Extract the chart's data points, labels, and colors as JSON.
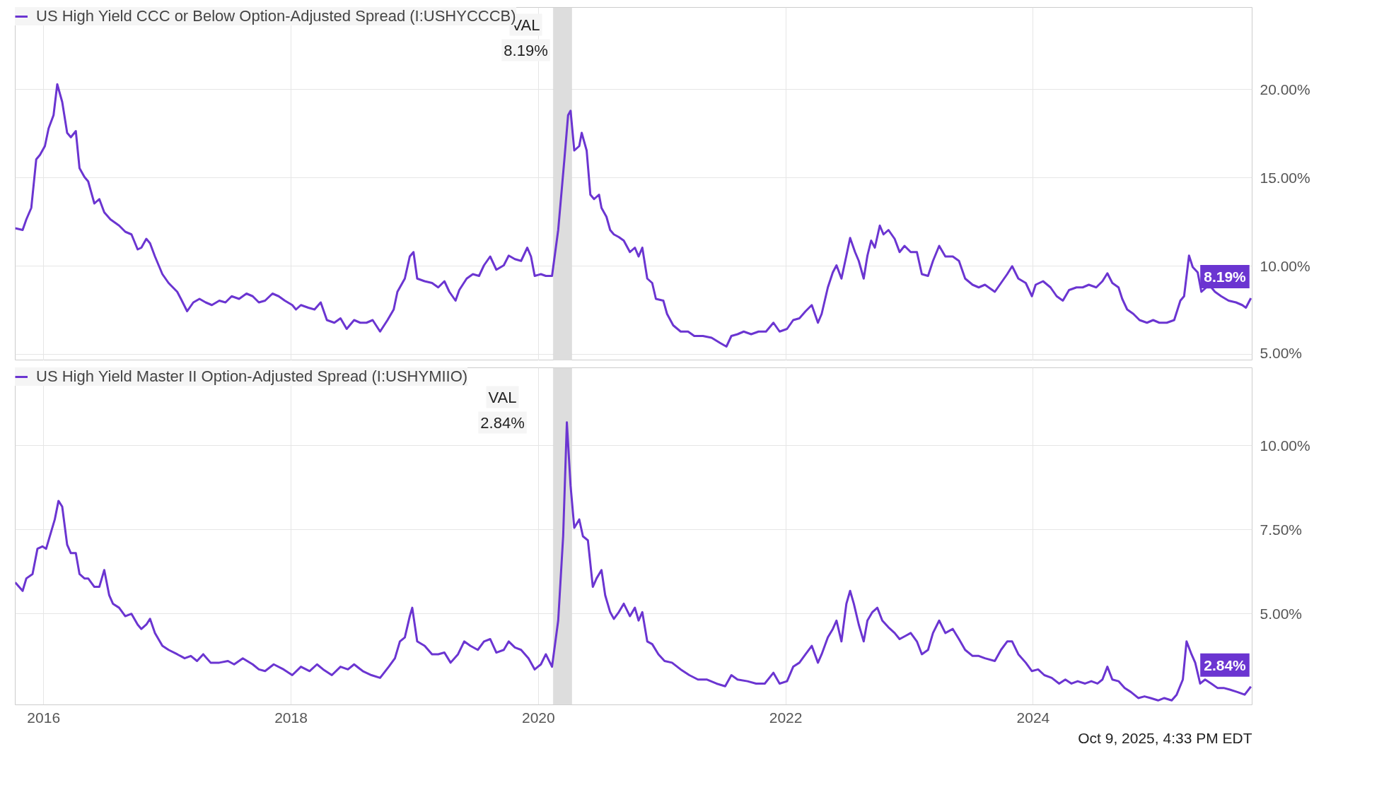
{
  "chart_data": [
    {
      "type": "line",
      "tick_labels": "y",
      "grid": true,
      "legend": "top left",
      "xlim": [
        2015.77,
        2025.77
      ],
      "xticks": [
        2016,
        2018,
        2020,
        2022,
        2024
      ],
      "ylim": [
        4.65,
        24.65
      ],
      "yticks": [
        {
          "value": 5,
          "label": "5.00%"
        },
        {
          "value": 10,
          "label": "10.00%"
        },
        {
          "value": 15,
          "label": "15.00%"
        },
        {
          "value": 20,
          "label": "20.00%"
        }
      ],
      "bands": [
        {
          "axis": "x",
          "from": 2020.12,
          "to": 2020.27,
          "color": "#dddddd"
        }
      ],
      "annotations": [
        "VAL",
        "8.19%",
        {
          "text": "8.19%",
          "x": 2025.76,
          "y": 8.19
        }
      ],
      "series": [
        {
          "name": "US High Yield CCC or Below Option-Adjusted Spread (I:USHYCCCB)",
          "color": "#6b35d1",
          "x": [
            2015.77,
            2015.83,
            2015.86,
            2015.9,
            2015.94,
            2015.97,
            2016.01,
            2016.04,
            2016.08,
            2016.11,
            2016.15,
            2016.19,
            2016.22,
            2016.26,
            2016.29,
            2016.33,
            2016.36,
            2016.41,
            2016.45,
            2016.49,
            2016.54,
            2016.58,
            2016.61,
            2016.66,
            2016.71,
            2016.76,
            2016.79,
            2016.83,
            2016.86,
            2016.9,
            2016.96,
            2017.01,
            2017.08,
            2017.11,
            2017.16,
            2017.21,
            2017.26,
            2017.31,
            2017.36,
            2017.42,
            2017.47,
            2017.52,
            2017.58,
            2017.64,
            2017.69,
            2017.74,
            2017.79,
            2017.85,
            2017.9,
            2017.95,
            2018.01,
            2018.04,
            2018.08,
            2018.14,
            2018.19,
            2018.24,
            2018.29,
            2018.35,
            2018.4,
            2018.45,
            2018.51,
            2018.56,
            2018.61,
            2018.66,
            2018.72,
            2018.78,
            2018.83,
            2018.86,
            2018.92,
            2018.96,
            2018.99,
            2019.02,
            2019.08,
            2019.14,
            2019.19,
            2019.24,
            2019.28,
            2019.33,
            2019.36,
            2019.42,
            2019.47,
            2019.52,
            2019.56,
            2019.61,
            2019.66,
            2019.72,
            2019.76,
            2019.81,
            2019.86,
            2019.91,
            2019.94,
            2019.97,
            2020.02,
            2020.06,
            2020.11,
            2020.16,
            2020.21,
            2020.24,
            2020.26,
            2020.29,
            2020.33,
            2020.35,
            2020.39,
            2020.42,
            2020.45,
            2020.49,
            2020.51,
            2020.55,
            2020.58,
            2020.61,
            2020.65,
            2020.69,
            2020.74,
            2020.78,
            2020.81,
            2020.84,
            2020.88,
            2020.92,
            2020.95,
            2021.01,
            2021.04,
            2021.09,
            2021.15,
            2021.21,
            2021.26,
            2021.33,
            2021.4,
            2021.47,
            2021.52,
            2021.56,
            2021.61,
            2021.66,
            2021.72,
            2021.78,
            2021.84,
            2021.9,
            2021.95,
            2022.01,
            2022.06,
            2022.11,
            2022.16,
            2022.21,
            2022.26,
            2022.29,
            2022.34,
            2022.38,
            2022.41,
            2022.45,
            2022.49,
            2022.52,
            2022.56,
            2022.59,
            2022.63,
            2022.66,
            2022.69,
            2022.72,
            2022.76,
            2022.79,
            2022.83,
            2022.88,
            2022.92,
            2022.96,
            2023.01,
            2023.06,
            2023.1,
            2023.15,
            2023.19,
            2023.24,
            2023.29,
            2023.35,
            2023.4,
            2023.45,
            2023.51,
            2023.56,
            2023.61,
            2023.69,
            2023.74,
            2023.79,
            2023.83,
            2023.88,
            2023.94,
            2023.99,
            2024.02,
            2024.08,
            2024.14,
            2024.19,
            2024.24,
            2024.29,
            2024.35,
            2024.4,
            2024.45,
            2024.51,
            2024.56,
            2024.6,
            2024.64,
            2024.69,
            2024.72,
            2024.76,
            2024.81,
            2024.86,
            2024.92,
            2024.97,
            2025.02,
            2025.08,
            2025.14,
            2025.19,
            2025.22,
            2025.26,
            2025.29,
            2025.33,
            2025.36,
            2025.4,
            2025.44,
            2025.47,
            2025.52,
            2025.58,
            2025.64,
            2025.69,
            2025.72,
            2025.76
          ],
          "values": [
            12.15,
            12.05,
            12.65,
            13.3,
            16.05,
            16.3,
            16.8,
            17.8,
            18.55,
            20.3,
            19.3,
            17.55,
            17.3,
            17.65,
            15.55,
            15.05,
            14.8,
            13.55,
            13.8,
            13.05,
            12.65,
            12.45,
            12.3,
            11.95,
            11.8,
            10.95,
            11.05,
            11.55,
            11.3,
            10.55,
            9.55,
            9.05,
            8.55,
            8.15,
            7.45,
            7.95,
            8.15,
            7.95,
            7.8,
            8.05,
            7.95,
            8.3,
            8.15,
            8.45,
            8.3,
            7.95,
            8.05,
            8.45,
            8.3,
            8.05,
            7.8,
            7.55,
            7.8,
            7.65,
            7.55,
            7.95,
            6.95,
            6.8,
            7.05,
            6.45,
            6.95,
            6.8,
            6.8,
            6.95,
            6.3,
            6.95,
            7.55,
            8.55,
            9.3,
            10.55,
            10.8,
            9.3,
            9.15,
            9.05,
            8.8,
            9.15,
            8.55,
            8.05,
            8.65,
            9.3,
            9.55,
            9.45,
            10.05,
            10.55,
            9.8,
            10.05,
            10.6,
            10.4,
            10.3,
            11.05,
            10.55,
            9.45,
            9.55,
            9.45,
            9.45,
            12.05,
            16.05,
            18.55,
            18.8,
            16.55,
            16.8,
            17.55,
            16.55,
            14.05,
            13.8,
            14.05,
            13.3,
            12.8,
            12.05,
            11.8,
            11.65,
            11.45,
            10.8,
            11.05,
            10.55,
            11.05,
            9.3,
            9.05,
            8.15,
            8.05,
            7.3,
            6.65,
            6.3,
            6.3,
            6.05,
            6.05,
            5.95,
            5.65,
            5.45,
            6.05,
            6.15,
            6.3,
            6.15,
            6.3,
            6.3,
            6.8,
            6.3,
            6.45,
            6.95,
            7.05,
            7.45,
            7.8,
            6.8,
            7.3,
            8.8,
            9.65,
            10.05,
            9.3,
            10.6,
            11.6,
            10.8,
            10.3,
            9.3,
            10.6,
            11.45,
            11.05,
            12.3,
            11.8,
            12.05,
            11.55,
            10.8,
            11.15,
            10.8,
            10.8,
            9.55,
            9.45,
            10.3,
            11.15,
            10.55,
            10.55,
            10.3,
            9.3,
            8.95,
            8.8,
            8.95,
            8.55,
            9.05,
            9.55,
            10.0,
            9.3,
            9.05,
            8.3,
            8.95,
            9.15,
            8.8,
            8.3,
            8.05,
            8.65,
            8.8,
            8.8,
            8.95,
            8.8,
            9.15,
            9.6,
            9.05,
            8.8,
            8.15,
            7.55,
            7.3,
            6.95,
            6.8,
            6.95,
            6.8,
            6.8,
            6.95,
            8.05,
            8.3,
            10.6,
            9.95,
            9.65,
            8.55,
            8.8,
            8.8,
            8.55,
            8.3,
            8.05,
            7.95,
            7.8,
            7.65,
            8.19
          ]
        }
      ]
    },
    {
      "type": "line",
      "grid": true,
      "legend": "top left",
      "xlim": [
        2015.77,
        2025.77
      ],
      "xticks": [
        2016,
        2018,
        2020,
        2022,
        2024
      ],
      "ylim": [
        2.3,
        12.3
      ],
      "yticks": [
        {
          "value": 5,
          "label": "5.00%"
        },
        {
          "value": 7.5,
          "label": "7.50%"
        },
        {
          "value": 10,
          "label": "10.00%"
        }
      ],
      "bands": [
        {
          "axis": "x",
          "from": 2020.12,
          "to": 2020.27,
          "color": "#dddddd"
        }
      ],
      "annotations": [
        "VAL",
        "2.84%",
        "Oct 9, 2025, 4:33 PM EDT",
        {
          "text": "2.84%",
          "x": 2025.76,
          "y": 2.84
        }
      ],
      "series": [
        {
          "name": "US High Yield Master II Option-Adjusted Spread (I:USHYMIIO)",
          "color": "#6b35d1",
          "x": [
            2015.77,
            2015.83,
            2015.86,
            2015.91,
            2015.95,
            2015.99,
            2016.02,
            2016.06,
            2016.09,
            2016.12,
            2016.15,
            2016.19,
            2016.22,
            2016.26,
            2016.29,
            2016.33,
            2016.36,
            2016.41,
            2016.45,
            2016.49,
            2016.53,
            2016.56,
            2016.61,
            2016.66,
            2016.71,
            2016.76,
            2016.79,
            2016.83,
            2016.86,
            2016.9,
            2016.96,
            2017.01,
            2017.08,
            2017.14,
            2017.19,
            2017.24,
            2017.29,
            2017.35,
            2017.42,
            2017.49,
            2017.54,
            2017.61,
            2017.69,
            2017.74,
            2017.79,
            2017.86,
            2017.94,
            2018.01,
            2018.08,
            2018.15,
            2018.21,
            2018.26,
            2018.33,
            2018.4,
            2018.46,
            2018.51,
            2018.58,
            2018.65,
            2018.72,
            2018.79,
            2018.84,
            2018.88,
            2018.92,
            2018.96,
            2018.98,
            2019.02,
            2019.08,
            2019.14,
            2019.19,
            2019.24,
            2019.29,
            2019.35,
            2019.4,
            2019.45,
            2019.51,
            2019.56,
            2019.61,
            2019.66,
            2019.72,
            2019.76,
            2019.81,
            2019.86,
            2019.92,
            2019.97,
            2020.02,
            2020.06,
            2020.11,
            2020.16,
            2020.2,
            2020.23,
            2020.26,
            2020.29,
            2020.33,
            2020.36,
            2020.4,
            2020.44,
            2020.47,
            2020.51,
            2020.54,
            2020.58,
            2020.61,
            2020.65,
            2020.69,
            2020.74,
            2020.78,
            2020.81,
            2020.84,
            2020.88,
            2020.92,
            2020.97,
            2021.02,
            2021.08,
            2021.15,
            2021.22,
            2021.29,
            2021.36,
            2021.44,
            2021.51,
            2021.56,
            2021.61,
            2021.69,
            2021.76,
            2021.83,
            2021.9,
            2021.95,
            2022.01,
            2022.06,
            2022.11,
            2022.16,
            2022.21,
            2022.26,
            2022.29,
            2022.34,
            2022.38,
            2022.41,
            2022.45,
            2022.49,
            2022.52,
            2022.55,
            2022.59,
            2022.63,
            2022.66,
            2022.7,
            2022.74,
            2022.78,
            2022.83,
            2022.88,
            2022.92,
            2022.97,
            2023.01,
            2023.06,
            2023.1,
            2023.15,
            2023.19,
            2023.24,
            2023.29,
            2023.35,
            2023.4,
            2023.45,
            2023.51,
            2023.56,
            2023.61,
            2023.69,
            2023.74,
            2023.79,
            2023.83,
            2023.88,
            2023.94,
            2023.99,
            2024.04,
            2024.09,
            2024.15,
            2024.21,
            2024.26,
            2024.31,
            2024.36,
            2024.42,
            2024.47,
            2024.52,
            2024.56,
            2024.6,
            2024.64,
            2024.69,
            2024.74,
            2024.79,
            2024.85,
            2024.9,
            2024.95,
            2025.01,
            2025.06,
            2025.12,
            2025.16,
            2025.21,
            2025.24,
            2025.28,
            2025.31,
            2025.35,
            2025.39,
            2025.44,
            2025.49,
            2025.54,
            2025.59,
            2025.65,
            2025.71,
            2025.76
          ],
          "values": [
            5.93,
            5.68,
            6.05,
            6.18,
            6.93,
            7.0,
            6.93,
            7.43,
            7.8,
            8.35,
            8.18,
            7.05,
            6.8,
            6.8,
            6.18,
            6.05,
            6.05,
            5.8,
            5.8,
            6.3,
            5.55,
            5.3,
            5.18,
            4.93,
            5.0,
            4.68,
            4.55,
            4.68,
            4.85,
            4.43,
            4.05,
            3.93,
            3.8,
            3.68,
            3.75,
            3.6,
            3.8,
            3.55,
            3.55,
            3.6,
            3.5,
            3.68,
            3.5,
            3.35,
            3.3,
            3.5,
            3.35,
            3.18,
            3.43,
            3.3,
            3.5,
            3.35,
            3.18,
            3.43,
            3.35,
            3.5,
            3.3,
            3.18,
            3.1,
            3.43,
            3.68,
            4.18,
            4.3,
            4.93,
            5.18,
            4.18,
            4.05,
            3.8,
            3.8,
            3.85,
            3.55,
            3.8,
            4.18,
            4.05,
            3.93,
            4.18,
            4.25,
            3.85,
            3.93,
            4.18,
            4.0,
            3.93,
            3.68,
            3.35,
            3.5,
            3.8,
            3.43,
            4.8,
            7.3,
            10.68,
            8.8,
            7.55,
            7.8,
            7.3,
            7.18,
            5.8,
            6.05,
            6.3,
            5.55,
            5.05,
            4.85,
            5.05,
            5.3,
            4.93,
            5.18,
            4.8,
            5.05,
            4.18,
            4.1,
            3.8,
            3.6,
            3.55,
            3.35,
            3.18,
            3.05,
            3.05,
            2.93,
            2.85,
            3.18,
            3.05,
            3.0,
            2.93,
            2.93,
            3.25,
            2.93,
            3.0,
            3.43,
            3.55,
            3.8,
            4.05,
            3.55,
            3.8,
            4.3,
            4.55,
            4.8,
            4.18,
            5.3,
            5.68,
            5.3,
            4.68,
            4.18,
            4.8,
            5.05,
            5.18,
            4.8,
            4.6,
            4.43,
            4.25,
            4.35,
            4.43,
            4.18,
            3.8,
            3.93,
            4.43,
            4.8,
            4.43,
            4.55,
            4.25,
            3.93,
            3.75,
            3.75,
            3.68,
            3.6,
            3.93,
            4.18,
            4.18,
            3.8,
            3.55,
            3.3,
            3.35,
            3.18,
            3.1,
            2.93,
            3.05,
            2.93,
            3.0,
            2.93,
            3.0,
            2.93,
            3.05,
            3.43,
            3.05,
            3.0,
            2.8,
            2.68,
            2.5,
            2.55,
            2.5,
            2.43,
            2.5,
            2.43,
            2.6,
            3.05,
            4.18,
            3.8,
            3.55,
            2.93,
            3.05,
            2.93,
            2.8,
            2.8,
            2.75,
            2.68,
            2.6,
            2.84
          ]
        }
      ]
    }
  ]
}
